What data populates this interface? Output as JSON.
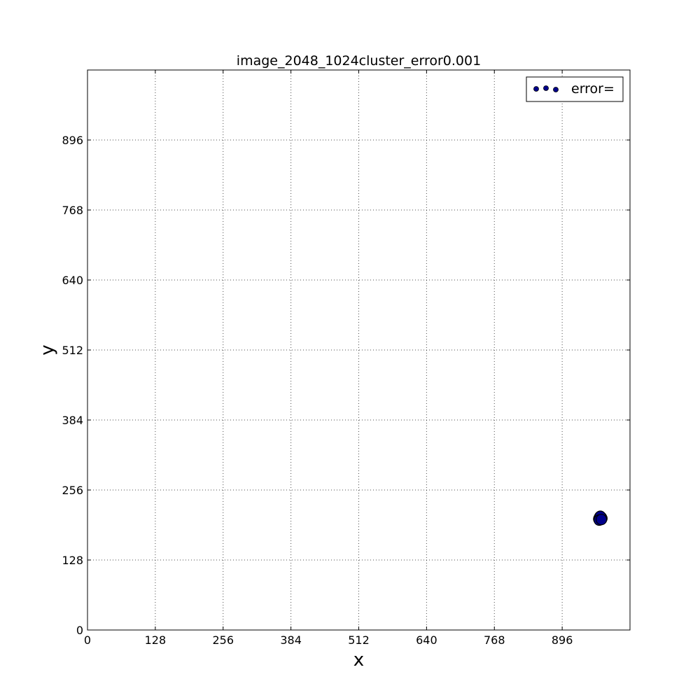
{
  "chart_data": {
    "type": "scatter",
    "title": "image_2048_1024cluster_error0.001",
    "xlabel": "x",
    "ylabel": "y",
    "xlim": [
      0,
      1024
    ],
    "ylim": [
      0,
      1024
    ],
    "xticks": [
      0,
      128,
      256,
      384,
      512,
      640,
      768,
      896
    ],
    "yticks": [
      0,
      128,
      256,
      384,
      512,
      640,
      768,
      896
    ],
    "grid": true,
    "legend_position": "top-right",
    "series": [
      {
        "name": "error=",
        "color": "#00008b",
        "edge_color": "#000000",
        "points": [
          {
            "x": 966,
            "y": 205
          },
          {
            "x": 968,
            "y": 203
          },
          {
            "x": 970,
            "y": 206
          },
          {
            "x": 967,
            "y": 207
          },
          {
            "x": 969,
            "y": 204
          },
          {
            "x": 965,
            "y": 203
          },
          {
            "x": 971,
            "y": 204
          },
          {
            "x": 968,
            "y": 208
          },
          {
            "x": 966,
            "y": 201
          },
          {
            "x": 970,
            "y": 202
          }
        ]
      }
    ]
  }
}
